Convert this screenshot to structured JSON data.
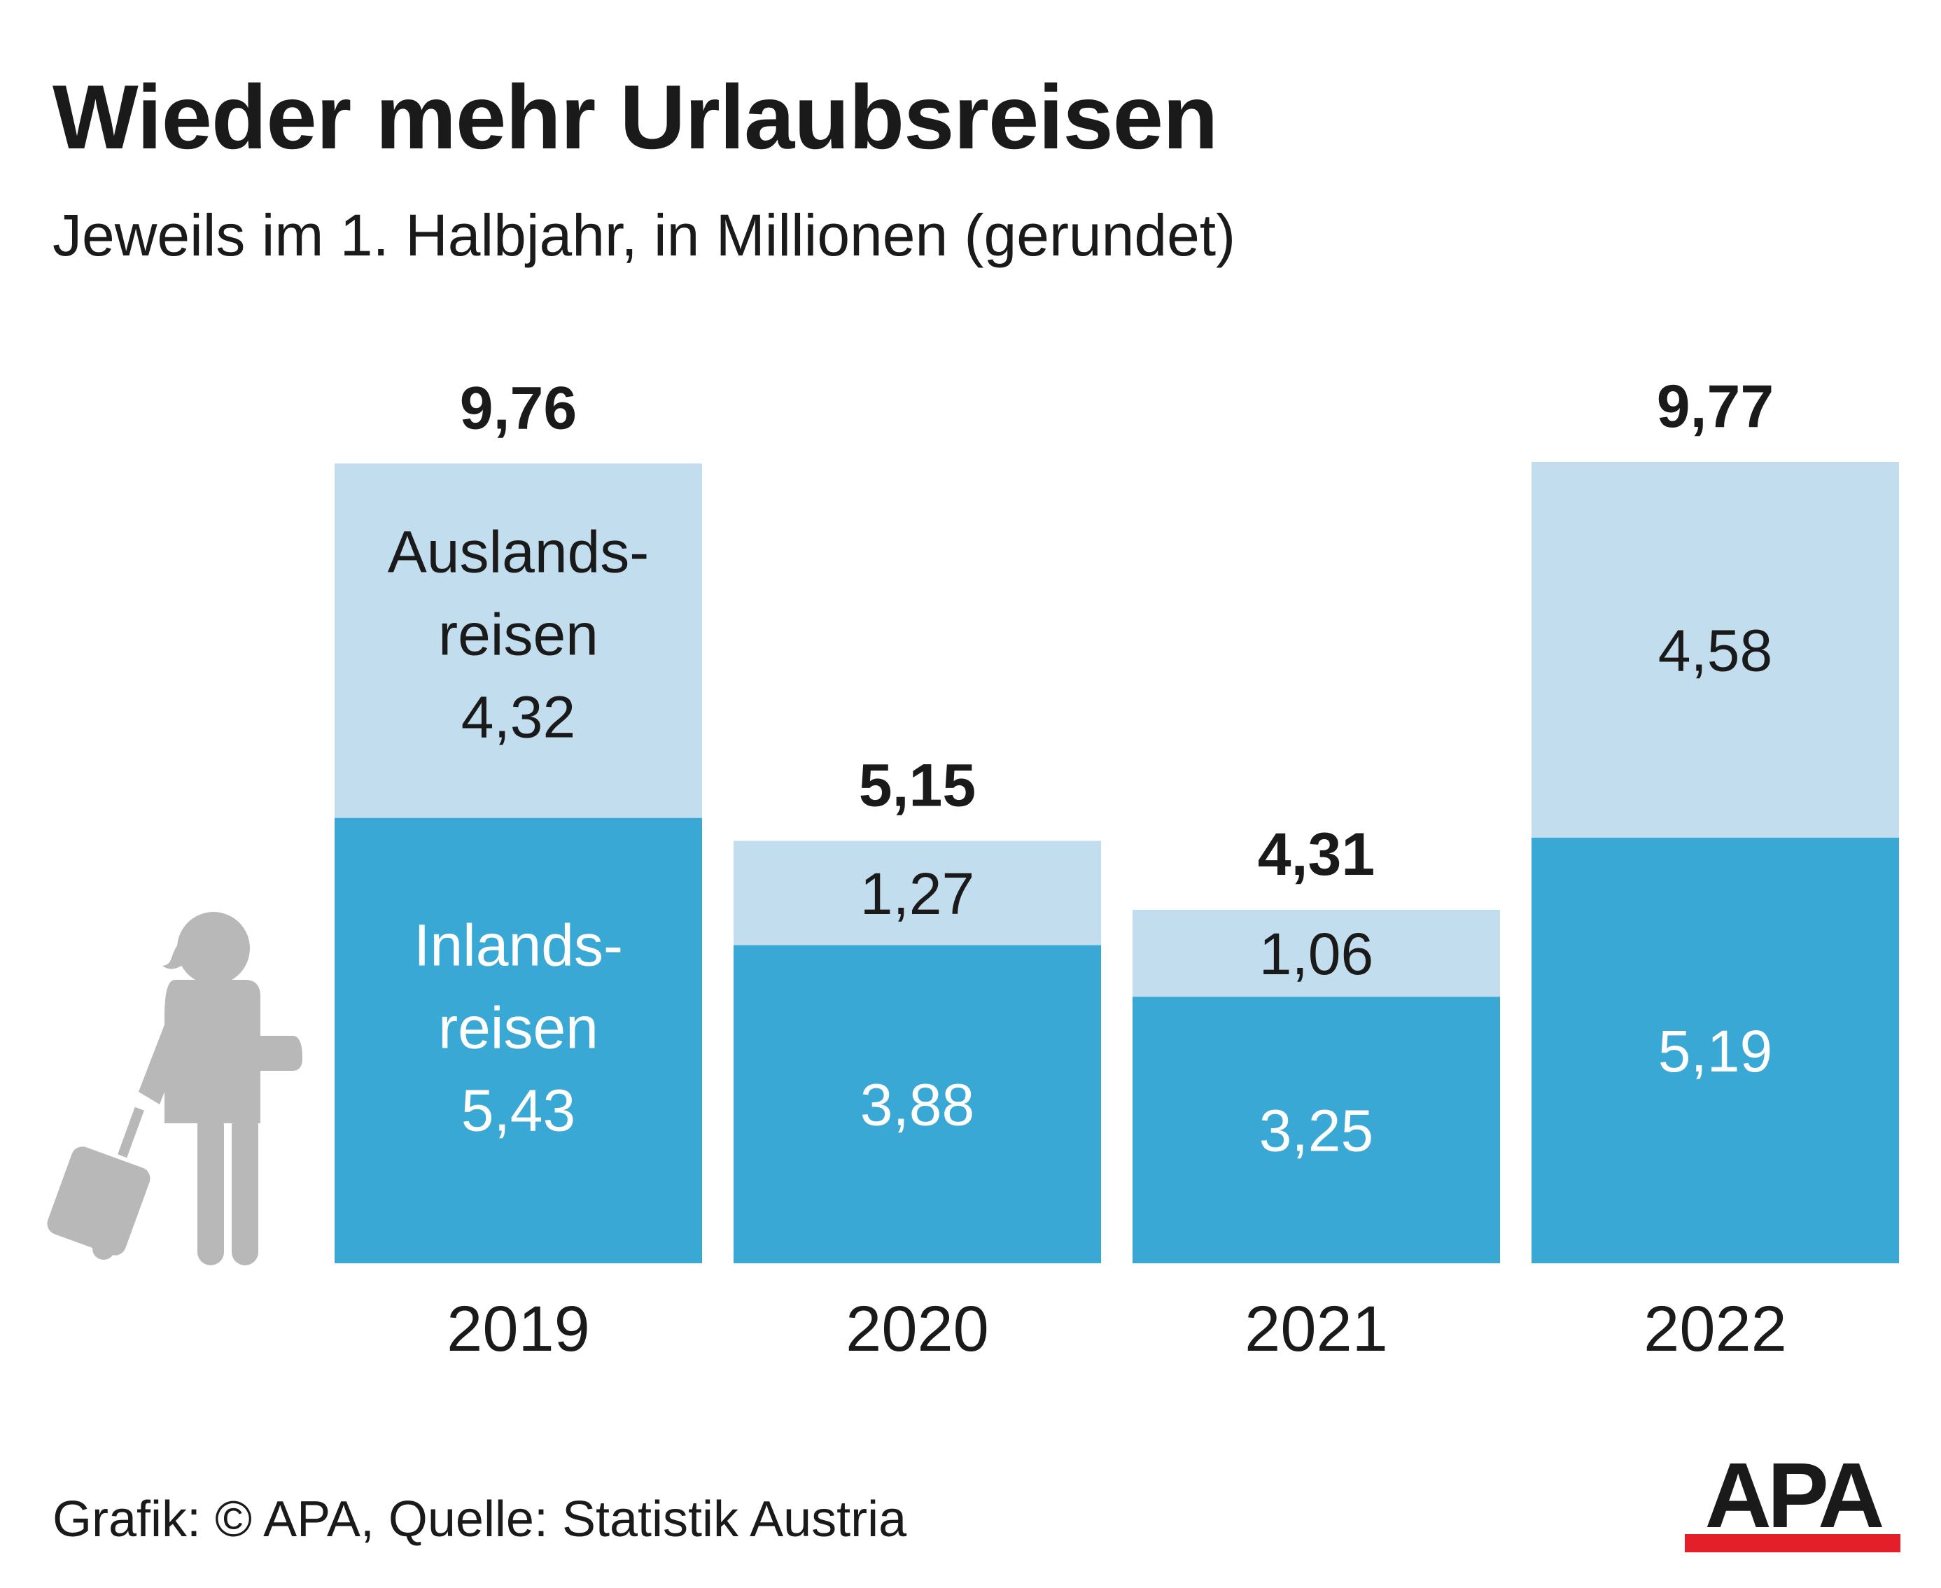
{
  "title": "Wieder mehr Urlaubsreisen",
  "subtitle": "Jeweils im 1. Halbjahr, in Millionen (gerundet)",
  "footer": "Grafik: © APA, Quelle: Statistik Austria",
  "logo_text": "APA",
  "colors": {
    "inland": "#3aa8d4",
    "ausland": "#c2ddee",
    "figure": "#b8b8b8",
    "logo_red": "#e3202a",
    "text_dark": "#1a1a1a",
    "text_light": "#ffffff"
  },
  "chart_data": {
    "type": "bar",
    "stacked": true,
    "categories": [
      "2019",
      "2020",
      "2021",
      "2022"
    ],
    "series": [
      {
        "name": "Inlandsreisen",
        "label_lines": [
          "Inlands-",
          "reisen"
        ],
        "values": [
          5.43,
          3.88,
          3.25,
          5.19
        ],
        "labels": [
          "5,43",
          "3,88",
          "3,25",
          "5,19"
        ]
      },
      {
        "name": "Auslandsreisen",
        "label_lines": [
          "Auslands-",
          "reisen"
        ],
        "values": [
          4.32,
          1.27,
          1.06,
          4.58
        ],
        "labels": [
          "4,32",
          "1,27",
          "1,06",
          "4,58"
        ]
      }
    ],
    "totals": [
      9.76,
      5.15,
      4.31,
      9.77
    ],
    "total_labels": [
      "9,76",
      "5,15",
      "4,31",
      "9,77"
    ],
    "title": "Wieder mehr Urlaubsreisen",
    "ylabel": "",
    "xlabel": "",
    "ylim": [
      0,
      9.77
    ],
    "grid": false,
    "legend": "inline in first bar"
  }
}
